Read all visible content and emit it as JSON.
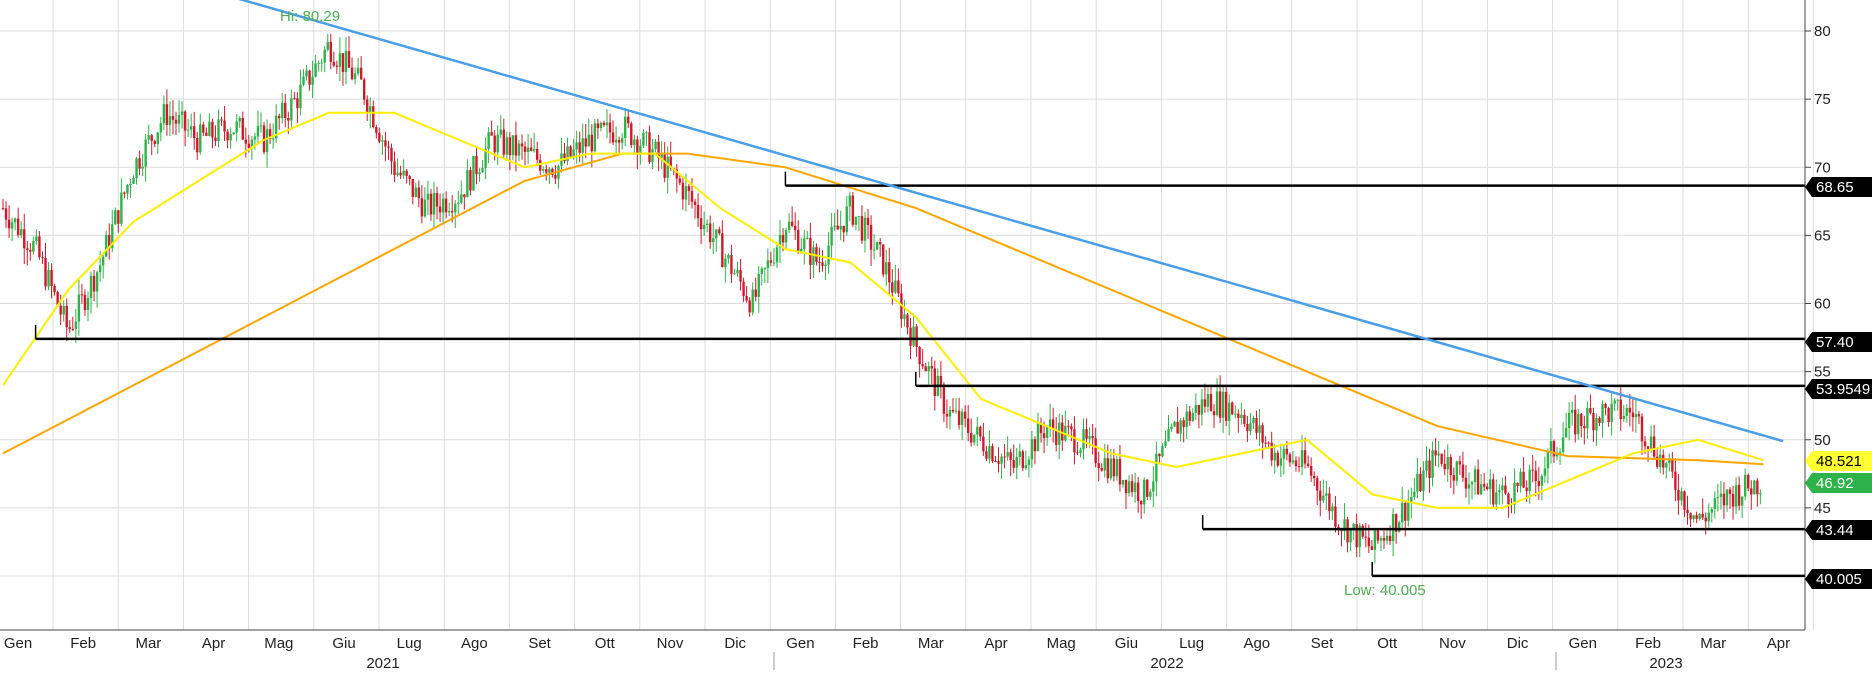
{
  "chart_data": {
    "type": "candlestick",
    "y_axis": {
      "side": "right",
      "ylim": [
        36,
        82
      ],
      "ticks": [
        45,
        50,
        55,
        60,
        65,
        70,
        75,
        80
      ]
    },
    "x_axis": {
      "month_labels": [
        "Gen",
        "Feb",
        "Mar",
        "Apr",
        "Mag",
        "Giu",
        "Lug",
        "Ago",
        "Set",
        "Ott",
        "Nov",
        "Dic",
        "Gen",
        "Feb",
        "Mar",
        "Apr",
        "Mag",
        "Giu",
        "Lug",
        "Ago",
        "Set",
        "Ott",
        "Nov",
        "Dic",
        "Gen",
        "Feb",
        "Mar",
        "Apr"
      ],
      "year_labels": [
        "2021",
        "2022",
        "2023"
      ]
    },
    "annotations": {
      "high": "Hi: 80.29",
      "low": "Low: 40.005"
    },
    "level_tags": [
      {
        "label": "68.65",
        "value": 68.65,
        "bg": "#000000",
        "fg": "#ffffff"
      },
      {
        "label": "57.40",
        "value": 57.4,
        "bg": "#000000",
        "fg": "#ffffff"
      },
      {
        "label": "53.9549",
        "value": 53.9549,
        "bg": "#000000",
        "fg": "#ffffff"
      },
      {
        "label": "48.521",
        "value": 48.521,
        "bg": "#ffff33",
        "fg": "#000000"
      },
      {
        "label": "46.92",
        "value": 46.92,
        "bg": "#2db34a",
        "fg": "#ffffff"
      },
      {
        "label": "43.44",
        "value": 43.44,
        "bg": "#000000",
        "fg": "#ffffff"
      },
      {
        "label": "40.005",
        "value": 40.005,
        "bg": "#000000",
        "fg": "#ffffff"
      }
    ],
    "price_path": [
      [
        0,
        67
      ],
      [
        0.5,
        64
      ],
      [
        1,
        58
      ],
      [
        1.5,
        63
      ],
      [
        2,
        70
      ],
      [
        2.5,
        74
      ],
      [
        3,
        72
      ],
      [
        3.5,
        73
      ],
      [
        4,
        72
      ],
      [
        4.5,
        75
      ],
      [
        5,
        79
      ],
      [
        5.5,
        76
      ],
      [
        6,
        70
      ],
      [
        6.5,
        67
      ],
      [
        7,
        68
      ],
      [
        7.5,
        72
      ],
      [
        8,
        71
      ],
      [
        8.5,
        70
      ],
      [
        9,
        72
      ],
      [
        9.5,
        73
      ],
      [
        10,
        71
      ],
      [
        10.5,
        68
      ],
      [
        11,
        64
      ],
      [
        11.5,
        60
      ],
      [
        12,
        66
      ],
      [
        12.5,
        63
      ],
      [
        13,
        67
      ],
      [
        13.5,
        63
      ],
      [
        14,
        57
      ],
      [
        14.5,
        52
      ],
      [
        15,
        50
      ],
      [
        15.5,
        48
      ],
      [
        16,
        51
      ],
      [
        16.5,
        50
      ],
      [
        17,
        48
      ],
      [
        17.5,
        46
      ],
      [
        18,
        51
      ],
      [
        18.5,
        53
      ],
      [
        19,
        52
      ],
      [
        19.5,
        49
      ],
      [
        20,
        48
      ],
      [
        20.5,
        44
      ],
      [
        21,
        42
      ],
      [
        21.5,
        45
      ],
      [
        22,
        49
      ],
      [
        22.5,
        47
      ],
      [
        23,
        46
      ],
      [
        23.5,
        47
      ],
      [
        24,
        51
      ],
      [
        24.5,
        52
      ],
      [
        25,
        52
      ],
      [
        25.5,
        48
      ],
      [
        26,
        44
      ],
      [
        26.5,
        46
      ],
      [
        27,
        47
      ]
    ],
    "ma_yellow": [
      [
        0,
        54
      ],
      [
        1,
        61
      ],
      [
        2,
        66
      ],
      [
        3,
        69
      ],
      [
        4,
        72
      ],
      [
        5,
        74
      ],
      [
        6,
        74
      ],
      [
        7,
        72
      ],
      [
        8,
        70
      ],
      [
        9,
        71
      ],
      [
        10,
        71
      ],
      [
        11,
        67
      ],
      [
        12,
        64
      ],
      [
        13,
        63
      ],
      [
        14,
        59
      ],
      [
        15,
        53
      ],
      [
        16,
        51
      ],
      [
        17,
        49
      ],
      [
        18,
        48
      ],
      [
        19,
        49
      ],
      [
        20,
        50
      ],
      [
        21,
        46
      ],
      [
        22,
        45
      ],
      [
        23,
        45
      ],
      [
        24,
        47
      ],
      [
        25,
        49
      ],
      [
        26,
        50
      ],
      [
        27,
        48.5
      ]
    ],
    "ma_orange": [
      [
        0,
        49
      ],
      [
        2,
        54
      ],
      [
        4,
        59
      ],
      [
        6,
        64
      ],
      [
        8,
        69
      ],
      [
        9.5,
        71
      ],
      [
        10.5,
        71
      ],
      [
        12,
        70
      ],
      [
        14,
        67
      ],
      [
        16,
        63
      ],
      [
        18,
        59
      ],
      [
        20,
        55
      ],
      [
        22,
        51
      ],
      [
        24,
        48.8
      ],
      [
        26,
        48.5
      ],
      [
        27,
        48.2
      ]
    ],
    "trendline": {
      "from": [
        -0.5,
        88
      ],
      "to": [
        27.3,
        49.9
      ]
    },
    "horizontal_levels": [
      {
        "value": 68.65,
        "from_month": 12
      },
      {
        "value": 57.4,
        "from_month": 0.5
      },
      {
        "value": 53.9549,
        "from_month": 14
      },
      {
        "value": 43.44,
        "from_month": 18.4
      },
      {
        "value": 40.005,
        "from_month": 21.0
      }
    ],
    "colors": {
      "up": "#2db34a",
      "down": "#d0192b",
      "ma_short": "#ffee00",
      "ma_long": "#ffa500",
      "trend": "#4a9ee8",
      "grid": "#dcdcdc"
    }
  }
}
